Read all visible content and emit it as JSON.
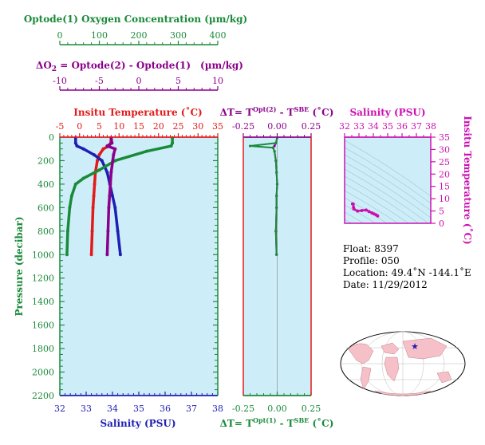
{
  "axes": {
    "oxygen": {
      "label": "Optode(1) Oxygen Concentration (µm/kg)",
      "ticks": [
        "0",
        "100",
        "200",
        "300",
        "400"
      ],
      "range": [
        0,
        400
      ],
      "color": "#1a8a3a"
    },
    "delta_o2": {
      "label_prefix": "ΔO",
      "label_sub": "2",
      "label_rest": " = Optode(2) - Optode(1)",
      "label_units": "(µm/kg)",
      "ticks": [
        "-10",
        "-5",
        "0",
        "5",
        "10"
      ],
      "range": [
        -10,
        10
      ],
      "color": "#8b008b"
    },
    "temperature": {
      "label": "Insitu Temperature (˚C)",
      "ticks": [
        "-5",
        "0",
        "5",
        "10",
        "15",
        "20",
        "25",
        "30",
        "35"
      ],
      "range": [
        -5,
        35
      ],
      "color": "#e31a1a"
    },
    "salinity_bottom": {
      "label": "Salinity (PSU)",
      "ticks": [
        "32",
        "33",
        "34",
        "35",
        "36",
        "37",
        "38"
      ],
      "range": [
        32,
        38
      ],
      "color": "#1f1fb4"
    },
    "pressure": {
      "label": "Pressure (decibar)",
      "ticks": [
        "0",
        "200",
        "400",
        "600",
        "800",
        "1000",
        "1200",
        "1400",
        "1600",
        "1800",
        "2000",
        "2200"
      ],
      "range": [
        0,
        2200
      ],
      "color": "#1a8a3a"
    },
    "dt_top": {
      "label_pre": "ΔT= T",
      "label_sup1": "Opt(2)",
      "label_mid": " - T",
      "label_sup2": "SBE",
      "label_post": " (˚C)",
      "ticks": [
        "-0.25",
        "0.00",
        "0.25"
      ],
      "range": [
        -0.25,
        0.25
      ],
      "color": "#8b008b"
    },
    "dt_bottom": {
      "label_pre": "ΔT= T",
      "label_sup1": "Opt(1)",
      "label_mid": " - T",
      "label_sup2": "SBE",
      "label_post": " (˚C)",
      "ticks": [
        "-0.25",
        "0.00",
        "0.25"
      ],
      "range": [
        -0.25,
        0.25
      ],
      "color": "#1a8a3a"
    },
    "ts_salinity": {
      "label": "Salinity (PSU)",
      "ticks": [
        "32",
        "33",
        "34",
        "35",
        "36",
        "37",
        "38"
      ],
      "range": [
        32,
        38
      ],
      "color": "#cc10b0"
    },
    "ts_temperature": {
      "label": "Insitu Temperature (˚C)",
      "ticks": [
        "0",
        "5",
        "10",
        "15",
        "20",
        "25",
        "30",
        "35"
      ],
      "range": [
        0,
        35
      ],
      "color": "#cc10b0"
    }
  },
  "info": {
    "float": "Float:  8397",
    "profile": "Profile:  050",
    "location": "Location:  49.4˚N  -144.1˚E",
    "date": "Date:  11/29/2012"
  },
  "colors": {
    "panel_bg": "#cdeef8",
    "oxygen": "#1a8a3a",
    "delta_o2": "#8b008b",
    "temperature": "#e31a1a",
    "salinity": "#1f1fb4",
    "ts": "#cc10b0",
    "map_land": "#f6c0c8",
    "map_ocean": "#ffffff"
  },
  "chart_data": [
    {
      "type": "line",
      "y_axis": "Pressure (decibar)",
      "ylim": [
        2200,
        0
      ],
      "series": [
        {
          "name": "Insitu Temperature (˚C)",
          "axis": "temperature",
          "x": [
            8.0,
            7.9,
            7.5,
            6.0,
            5.0,
            4.5,
            4.0,
            3.8,
            3.6,
            3.4,
            3.2,
            3.0
          ],
          "y": [
            5,
            50,
            75,
            100,
            150,
            200,
            300,
            400,
            500,
            600,
            800,
            1000
          ]
        },
        {
          "name": "Salinity (PSU)",
          "axis": "salinity_bottom",
          "x": [
            32.6,
            32.6,
            32.65,
            32.9,
            33.3,
            33.6,
            33.8,
            33.9,
            34.0,
            34.1,
            34.2,
            34.3
          ],
          "y": [
            5,
            50,
            75,
            100,
            150,
            200,
            300,
            400,
            500,
            600,
            800,
            1000
          ]
        },
        {
          "name": "Optode(1) Oxygen Concentration (µm/kg)",
          "axis": "oxygen",
          "x": [
            285,
            285,
            282,
            220,
            140,
            100,
            60,
            40,
            30,
            25,
            20,
            18
          ],
          "y": [
            5,
            50,
            75,
            120,
            200,
            280,
            350,
            400,
            500,
            600,
            800,
            1000
          ]
        },
        {
          "name": "ΔO2 = Optode(2) - Optode(1)",
          "axis": "delta_o2",
          "x": [
            -3.5,
            -3.4,
            -4.0,
            -3.0,
            -3.2,
            -3.3,
            -3.5,
            -3.6,
            -3.7,
            -3.8,
            -3.9,
            -4.0
          ],
          "y": [
            5,
            50,
            75,
            100,
            150,
            200,
            300,
            400,
            500,
            600,
            800,
            1000
          ]
        }
      ]
    },
    {
      "type": "line",
      "y_axis": "Pressure (decibar)",
      "ylim": [
        2200,
        0
      ],
      "series": [
        {
          "name": "ΔT Opt(2)",
          "axis": "dt_top",
          "x": [
            0.0,
            -0.01,
            -0.02,
            -0.03,
            -0.02,
            -0.01,
            -0.005,
            0.0,
            -0.005,
            -0.005,
            -0.01,
            -0.005
          ],
          "y": [
            5,
            50,
            75,
            90,
            120,
            200,
            300,
            400,
            500,
            600,
            800,
            1000
          ]
        },
        {
          "name": "ΔT Opt(1)",
          "axis": "dt_bottom",
          "x": [
            0.0,
            -0.01,
            -0.2,
            -0.03,
            -0.02,
            -0.01,
            -0.005,
            0.0,
            -0.005,
            -0.005,
            -0.01,
            -0.005
          ],
          "y": [
            5,
            50,
            75,
            90,
            120,
            200,
            300,
            400,
            500,
            600,
            800,
            1000
          ]
        }
      ]
    },
    {
      "type": "scatter",
      "x_axis": "Salinity (PSU)",
      "y_axis": "Insitu Temperature (˚C)",
      "xlim": [
        32,
        38
      ],
      "ylim": [
        0,
        35
      ],
      "series": [
        {
          "name": "T-S",
          "x": [
            32.55,
            32.6,
            32.62,
            32.65,
            32.9,
            33.2,
            33.5,
            33.7,
            33.9,
            34.05,
            34.2,
            34.3
          ],
          "y": [
            7.9,
            7.8,
            6.5,
            5.8,
            5.0,
            5.2,
            5.4,
            4.8,
            4.2,
            3.8,
            3.4,
            3.0
          ]
        }
      ]
    }
  ]
}
